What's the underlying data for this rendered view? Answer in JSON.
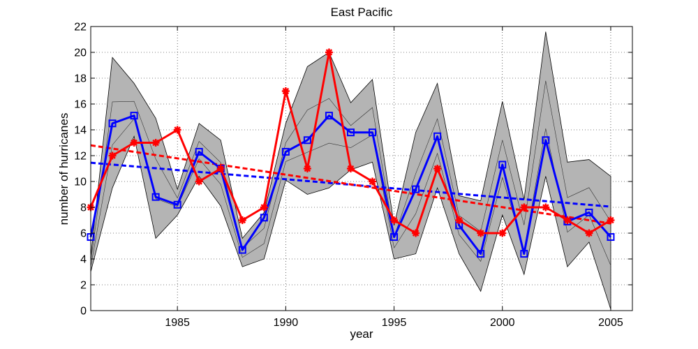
{
  "chart_data": {
    "type": "line",
    "title": "East Pacific",
    "xlabel": "year",
    "ylabel": "number of hurricanes",
    "xlim": [
      1981,
      2006
    ],
    "ylim": [
      0,
      22
    ],
    "xticks": [
      1985,
      1990,
      1995,
      2000,
      2005
    ],
    "yticks": [
      0,
      2,
      4,
      6,
      8,
      10,
      12,
      14,
      16,
      18,
      20,
      22
    ],
    "grid": "dotted",
    "legend": "none",
    "x": [
      1981,
      1982,
      1983,
      1984,
      1985,
      1986,
      1987,
      1988,
      1989,
      1990,
      1991,
      1992,
      1993,
      1994,
      1995,
      1996,
      1997,
      1998,
      1999,
      2000,
      2001,
      2002,
      2003,
      2004,
      2005
    ],
    "band": {
      "upper": [
        4.2,
        19.6,
        17.6,
        14.9,
        9.4,
        14.5,
        13.2,
        5.6,
        7.6,
        14.5,
        18.9,
        20.0,
        16.1,
        17.9,
        6.6,
        13.8,
        17.6,
        8.9,
        8.5,
        16.2,
        8.6,
        21.6,
        11.5,
        11.7,
        10.4
      ],
      "lower": [
        3.0,
        9.5,
        13.5,
        5.6,
        7.4,
        10.4,
        8.1,
        3.4,
        4.0,
        10.1,
        9.0,
        9.5,
        10.9,
        11.5,
        4.0,
        4.4,
        9.5,
        4.4,
        1.5,
        7.4,
        2.8,
        10.4,
        3.4,
        5.3,
        0.1
      ],
      "color": "#b4b4b4"
    },
    "series": [
      {
        "values": [
          5.7,
          14.5,
          15.1,
          8.8,
          8.2,
          12.3,
          11.0,
          4.7,
          7.2,
          12.3,
          13.2,
          15.1,
          13.8,
          13.8,
          5.7,
          9.4,
          13.5,
          6.6,
          4.4,
          11.3,
          4.4,
          13.2,
          6.9,
          7.6,
          5.7
        ],
        "color": "#0000ff",
        "marker": "square",
        "trend": [
          11.45,
          8.05
        ]
      },
      {
        "values": [
          8,
          12,
          13,
          13,
          14,
          10,
          11,
          7,
          8,
          17,
          11,
          20,
          11,
          10,
          7,
          6,
          11,
          7,
          6,
          6,
          8,
          8,
          7,
          6,
          7
        ],
        "color": "#ff0000",
        "marker": "star",
        "trend": [
          12.8,
          6.75
        ]
      }
    ]
  }
}
